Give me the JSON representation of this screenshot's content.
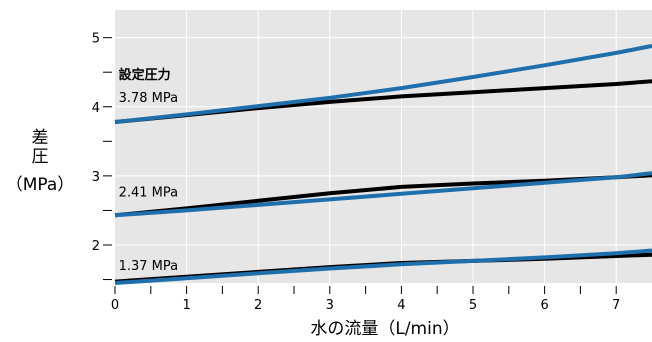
{
  "chart_data": {
    "type": "line",
    "xlabel": "水の流量（L/min）",
    "ylabel_lines": [
      "差",
      "圧",
      "（MPa）"
    ],
    "xlim": [
      0,
      7.5
    ],
    "ylim": [
      1.45,
      5.4
    ],
    "x_ticks": [
      0,
      1,
      2,
      3,
      4,
      5,
      6,
      7
    ],
    "x_minor_ticks": [
      0.5,
      1.5,
      2.5,
      3.5,
      4.5,
      5.5,
      6.5
    ],
    "y_ticks": [
      2,
      3,
      4,
      5
    ],
    "y_minor_ticks": [
      1.5,
      2.5,
      3.5,
      4.5
    ],
    "grid": true,
    "background": "#e6e6e6",
    "annotations": [
      {
        "text": "設定圧力",
        "x": 0.05,
        "y": 4.4,
        "bold": true
      },
      {
        "text": "3.78 MPa",
        "x": 0.05,
        "y": 4.07,
        "bold": false
      },
      {
        "text": "2.41 MPa",
        "x": 0.05,
        "y": 2.7,
        "bold": false
      },
      {
        "text": "1.37 MPa",
        "x": 0.05,
        "y": 1.64,
        "bold": false
      }
    ],
    "series": [
      {
        "color": "#000000",
        "x": [
          0,
          1,
          2,
          3,
          4,
          5,
          6,
          7,
          7.5
        ],
        "values": [
          3.78,
          3.88,
          3.98,
          4.07,
          4.15,
          4.21,
          4.27,
          4.33,
          4.37
        ]
      },
      {
        "color": "#1f6fad",
        "x": [
          0,
          1,
          2,
          3,
          4,
          5,
          6,
          7,
          7.5
        ],
        "values": [
          3.78,
          3.89,
          4.01,
          4.13,
          4.27,
          4.43,
          4.6,
          4.78,
          4.88
        ]
      },
      {
        "color": "#000000",
        "x": [
          0,
          1,
          2,
          3,
          4,
          5,
          6,
          7,
          7.5
        ],
        "values": [
          2.43,
          2.53,
          2.64,
          2.75,
          2.84,
          2.89,
          2.93,
          2.98,
          3.01
        ]
      },
      {
        "color": "#1f6fad",
        "x": [
          0,
          1,
          2,
          3,
          4,
          5,
          6,
          7,
          7.5
        ],
        "values": [
          2.43,
          2.5,
          2.58,
          2.66,
          2.74,
          2.82,
          2.9,
          2.98,
          3.04
        ]
      },
      {
        "color": "#000000",
        "x": [
          0,
          1,
          2,
          3,
          4,
          5,
          6,
          7,
          7.5
        ],
        "values": [
          1.47,
          1.54,
          1.61,
          1.68,
          1.74,
          1.77,
          1.8,
          1.84,
          1.86
        ]
      },
      {
        "color": "#1f6fad",
        "x": [
          0,
          1,
          2,
          3,
          4,
          5,
          6,
          7,
          7.5
        ],
        "values": [
          1.45,
          1.52,
          1.59,
          1.66,
          1.72,
          1.77,
          1.82,
          1.88,
          1.92
        ]
      }
    ]
  }
}
